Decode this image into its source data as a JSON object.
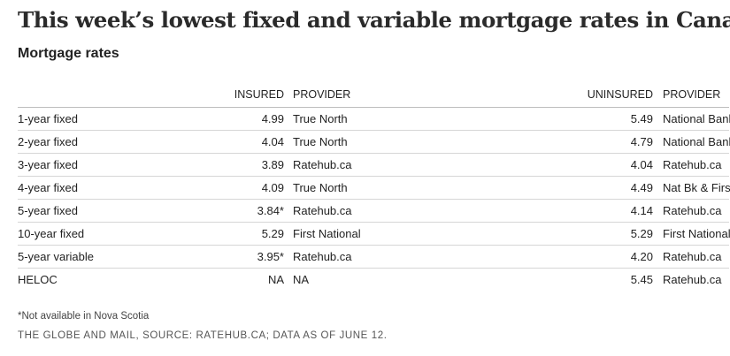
{
  "headline": "This week’s lowest fixed and variable mortgage rates in Canada",
  "subtitle": "Mortgage rates",
  "columns": {
    "term": "",
    "insured": "INSURED",
    "provider_insured": "PROVIDER",
    "uninsured": "UNINSURED",
    "provider_uninsured": "PROVIDER"
  },
  "rows": [
    {
      "term": "1-year fixed",
      "insured": "4.99",
      "provider_insured": "True North",
      "uninsured": "5.49",
      "provider_uninsured": "National Bank"
    },
    {
      "term": "2-year fixed",
      "insured": "4.04",
      "provider_insured": "True North",
      "uninsured": "4.79",
      "provider_uninsured": "National Bank"
    },
    {
      "term": "3-year fixed",
      "insured": "3.89",
      "provider_insured": "Ratehub.ca",
      "uninsured": "4.04",
      "provider_uninsured": "Ratehub.ca"
    },
    {
      "term": "4-year fixed",
      "insured": "4.09",
      "provider_insured": "True North",
      "uninsured": "4.49",
      "provider_uninsured": "Nat Bk & First Nat"
    },
    {
      "term": "5-year fixed",
      "insured": "3.84*",
      "provider_insured": "Ratehub.ca",
      "uninsured": "4.14",
      "provider_uninsured": "Ratehub.ca"
    },
    {
      "term": "10-year fixed",
      "insured": "5.29",
      "provider_insured": "First National",
      "uninsured": "5.29",
      "provider_uninsured": "First National"
    },
    {
      "term": "5-year variable",
      "insured": "3.95*",
      "provider_insured": "Ratehub.ca",
      "uninsured": "4.20",
      "provider_uninsured": "Ratehub.ca"
    },
    {
      "term": "HELOC",
      "insured": "NA",
      "provider_insured": "NA",
      "uninsured": "5.45",
      "provider_uninsured": "Ratehub.ca"
    }
  ],
  "footnote": "*Not available in Nova Scotia",
  "source": "THE GLOBE AND MAIL, SOURCE: RATEHUB.CA; DATA AS OF JUNE 12."
}
